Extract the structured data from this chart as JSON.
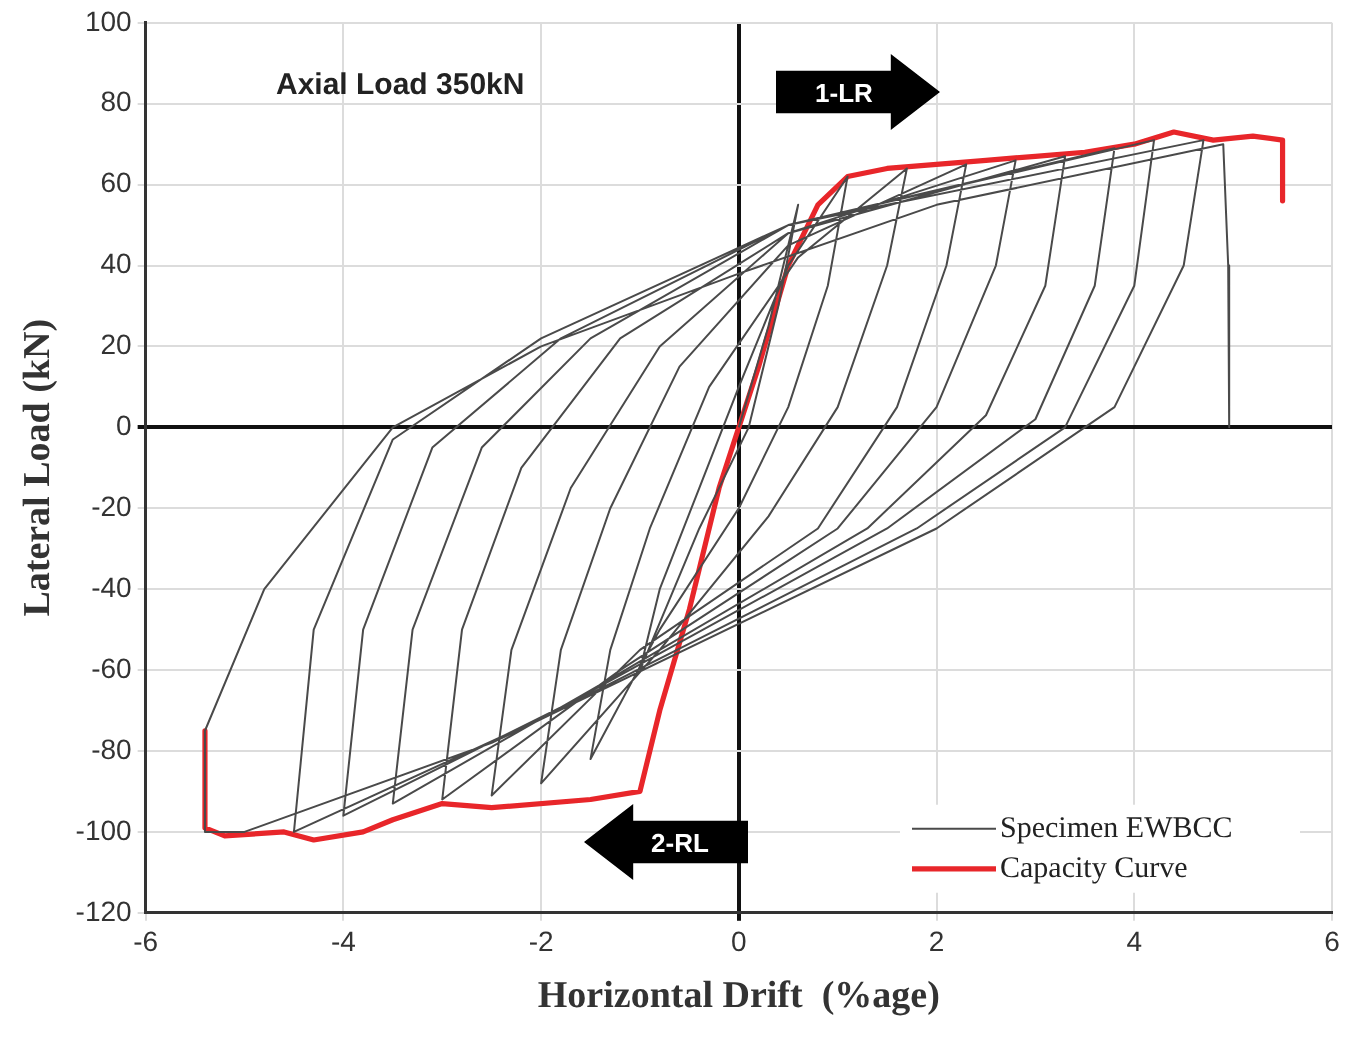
{
  "chart_data": {
    "type": "line",
    "xlabel": "Horizontal Drift  (%age)",
    "ylabel": "Lateral Load (kN)",
    "xlim": [
      -6,
      6
    ],
    "xticks": [
      -6,
      -4,
      -2,
      0,
      2,
      4,
      6
    ],
    "ylim": [
      -120,
      100
    ],
    "yticks": [
      -120,
      -100,
      -80,
      -60,
      -40,
      -20,
      0,
      20,
      40,
      60,
      80,
      100
    ],
    "grid": true,
    "legend": "bottom right",
    "marker": "none",
    "line_style": "solid",
    "annotations": [
      "Axial Load 350kN",
      "1-LR",
      "2-RL"
    ],
    "series": [
      {
        "name": "Specimen EWBCC",
        "color": "#4a4a4a",
        "x": [
          0,
          0.3,
          0.6,
          0.4,
          0.1,
          -0.4,
          -1.0,
          -0.8,
          -0.4,
          0,
          0.5,
          1.1,
          0.9,
          0.5,
          0,
          -0.8,
          -1.5,
          -1.3,
          -0.9,
          -0.3,
          0.6,
          1.7,
          1.5,
          1.0,
          0.3,
          -0.8,
          -2.0,
          -1.8,
          -1.3,
          -0.6,
          0.5,
          2.3,
          2.1,
          1.6,
          0.8,
          -1.0,
          -2.5,
          -2.3,
          -1.7,
          -0.8,
          0.5,
          2.8,
          2.6,
          2.0,
          1.0,
          -1.2,
          -3.0,
          -2.8,
          -2.2,
          -1.2,
          0.5,
          3.3,
          3.1,
          2.5,
          1.3,
          -1.5,
          -3.5,
          -3.3,
          -2.6,
          -1.5,
          0.5,
          3.8,
          3.6,
          3.0,
          1.5,
          -1.7,
          -4.0,
          -3.8,
          -3.1,
          -1.8,
          0.5,
          4.2,
          4.0,
          3.3,
          1.8,
          -2.0,
          -4.5,
          -4.3,
          -3.5,
          -2.0,
          0.5,
          4.7,
          4.5,
          3.8,
          2.0,
          -2.5,
          -5.0,
          -5.4,
          -5.4,
          -4.8,
          -3.5,
          -2.0,
          0,
          2.0,
          4.9,
          4.95,
          4.96
        ],
        "values": [
          0,
          25,
          55,
          30,
          0,
          -25,
          -60,
          -40,
          -15,
          10,
          40,
          62,
          35,
          5,
          -20,
          -50,
          -82,
          -55,
          -25,
          10,
          42,
          64,
          40,
          5,
          -22,
          -55,
          -88,
          -55,
          -20,
          15,
          45,
          65,
          40,
          5,
          -25,
          -55,
          -91,
          -55,
          -15,
          20,
          48,
          66,
          40,
          5,
          -25,
          -60,
          -92,
          -50,
          -10,
          22,
          48,
          67,
          35,
          3,
          -25,
          -65,
          -93,
          -50,
          -5,
          22,
          50,
          69,
          35,
          2,
          -25,
          -68,
          -96,
          -50,
          -5,
          22,
          50,
          71,
          35,
          0,
          -25,
          -72,
          -100,
          -50,
          -3,
          22,
          50,
          71,
          40,
          5,
          -25,
          -78,
          -100,
          -100,
          -75,
          -40,
          0,
          20,
          38,
          55,
          70,
          40,
          0
        ]
      },
      {
        "name": "Capacity Curve",
        "color": "#e8262a",
        "x": [
          -5.4,
          -5.4,
          -5.2,
          -4.6,
          -4.3,
          -3.8,
          -3.5,
          -3.0,
          -2.5,
          -1.5,
          -1.0,
          -0.8,
          -0.5,
          -0.2,
          0,
          0.2,
          0.5,
          0.8,
          1.1,
          1.5,
          2.0,
          2.5,
          3.0,
          3.5,
          4.0,
          4.4,
          4.8,
          5.2,
          5.5,
          5.5
        ],
        "values": [
          -75,
          -99,
          -101,
          -100,
          -102,
          -100,
          -97,
          -93,
          -94,
          -92,
          -90,
          -70,
          -45,
          -15,
          0,
          15,
          40,
          55,
          62,
          64,
          65,
          66,
          67,
          68,
          70,
          73,
          71,
          72,
          71,
          56
        ]
      }
    ]
  }
}
